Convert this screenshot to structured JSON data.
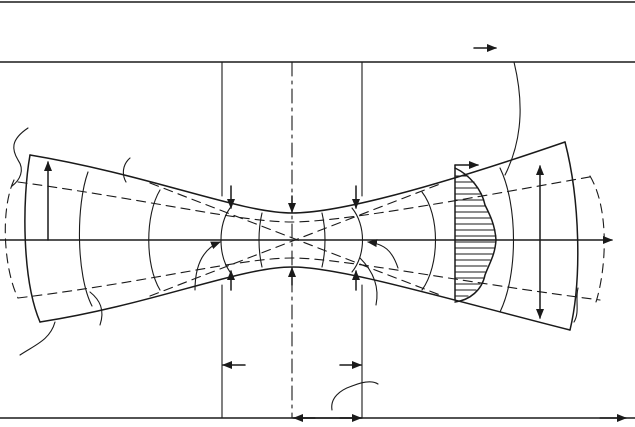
{
  "figure": {
    "kind": "gaussian-beam-waist-schematic",
    "labels": [],
    "colors": {
      "ink": "#1a1a1a",
      "background": "#ffffff"
    }
  }
}
